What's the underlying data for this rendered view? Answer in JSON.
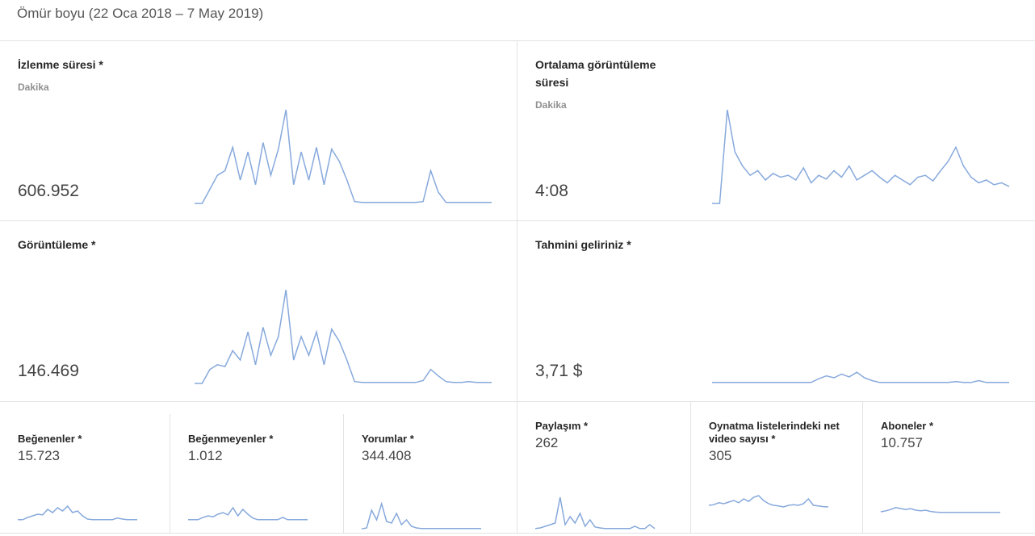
{
  "header": {
    "title": "Ömür boyu (22 Oca 2018 – 7 May 2019)"
  },
  "line_color": "#87a9dc",
  "cards": [
    {
      "title": "İzlenme süresi *",
      "subtitle": "Dakika",
      "value": "606.952",
      "spark": [
        0,
        0,
        15,
        30,
        35,
        60,
        25,
        55,
        20,
        65,
        30,
        58,
        100,
        20,
        55,
        25,
        60,
        20,
        58,
        45,
        25,
        2,
        1,
        1,
        1,
        1,
        1,
        1,
        1,
        1,
        2,
        35,
        12,
        1,
        1,
        1,
        1,
        1,
        1,
        1
      ]
    },
    {
      "title": "Ortalama görüntüleme süresi",
      "subtitle": "Dakika",
      "value": "4:08",
      "spark": [
        0,
        0,
        100,
        55,
        40,
        30,
        35,
        25,
        32,
        28,
        30,
        25,
        38,
        22,
        30,
        26,
        35,
        28,
        40,
        25,
        30,
        35,
        28,
        22,
        30,
        25,
        20,
        28,
        30,
        24,
        35,
        45,
        60,
        40,
        28,
        22,
        25,
        20,
        22,
        18
      ]
    },
    {
      "title": "Görüntüleme *",
      "value": "146.469",
      "spark": [
        0,
        0,
        15,
        20,
        18,
        35,
        25,
        55,
        20,
        60,
        30,
        50,
        100,
        25,
        50,
        30,
        55,
        20,
        58,
        45,
        25,
        2,
        1,
        1,
        1,
        1,
        1,
        1,
        1,
        1,
        3,
        15,
        8,
        2,
        1,
        1,
        2,
        1,
        1,
        1
      ]
    },
    {
      "title": "Tahmini geliriniz *",
      "value": "3,71 $",
      "spark": [
        1,
        1,
        1,
        1,
        1,
        1,
        1,
        1,
        1,
        1,
        1,
        1,
        1,
        1,
        5,
        8,
        6,
        10,
        7,
        12,
        6,
        3,
        1,
        1,
        1,
        1,
        1,
        1,
        1,
        1,
        1,
        1,
        2,
        1,
        1,
        3,
        1,
        1,
        1,
        1
      ]
    }
  ],
  "small_cards": [
    {
      "title": "Beğenenler *",
      "value": "15.723",
      "spark": [
        3,
        3,
        10,
        15,
        20,
        18,
        35,
        25,
        40,
        30,
        45,
        25,
        30,
        15,
        5,
        3,
        3,
        3,
        3,
        3,
        8,
        5,
        3,
        3,
        3
      ]
    },
    {
      "title": "Beğenmeyenler *",
      "value": "1.012",
      "spark": [
        3,
        3,
        3,
        10,
        15,
        12,
        20,
        25,
        18,
        40,
        15,
        35,
        20,
        8,
        3,
        3,
        3,
        3,
        3,
        10,
        3,
        3,
        3,
        3,
        3
      ]
    },
    {
      "title": "Yorumlar *",
      "value": "344.408",
      "spark": [
        2,
        5,
        60,
        30,
        80,
        25,
        20,
        50,
        15,
        30,
        10,
        5,
        3,
        3,
        3,
        3,
        3,
        3,
        3,
        3,
        3,
        3,
        3,
        3,
        3
      ]
    },
    {
      "title": "Paylaşım *",
      "value": "262",
      "spark": [
        3,
        5,
        10,
        15,
        20,
        100,
        15,
        40,
        20,
        50,
        10,
        30,
        8,
        5,
        3,
        3,
        3,
        3,
        3,
        3,
        10,
        3,
        3,
        15,
        3
      ]
    },
    {
      "title": "Oynatma listelerindeki net video sayısı *",
      "value": "305",
      "spark": [
        10,
        12,
        18,
        15,
        20,
        25,
        18,
        30,
        22,
        35,
        40,
        25,
        15,
        10,
        8,
        5,
        10,
        12,
        10,
        15,
        30,
        10,
        8,
        6,
        5
      ]
    },
    {
      "title": "Aboneler *",
      "value": "10.757",
      "spark": [
        5,
        8,
        12,
        18,
        15,
        12,
        15,
        10,
        8,
        10,
        6,
        4,
        3,
        3,
        3,
        3,
        3,
        3,
        3,
        3,
        3,
        3,
        3,
        3,
        3
      ]
    }
  ]
}
